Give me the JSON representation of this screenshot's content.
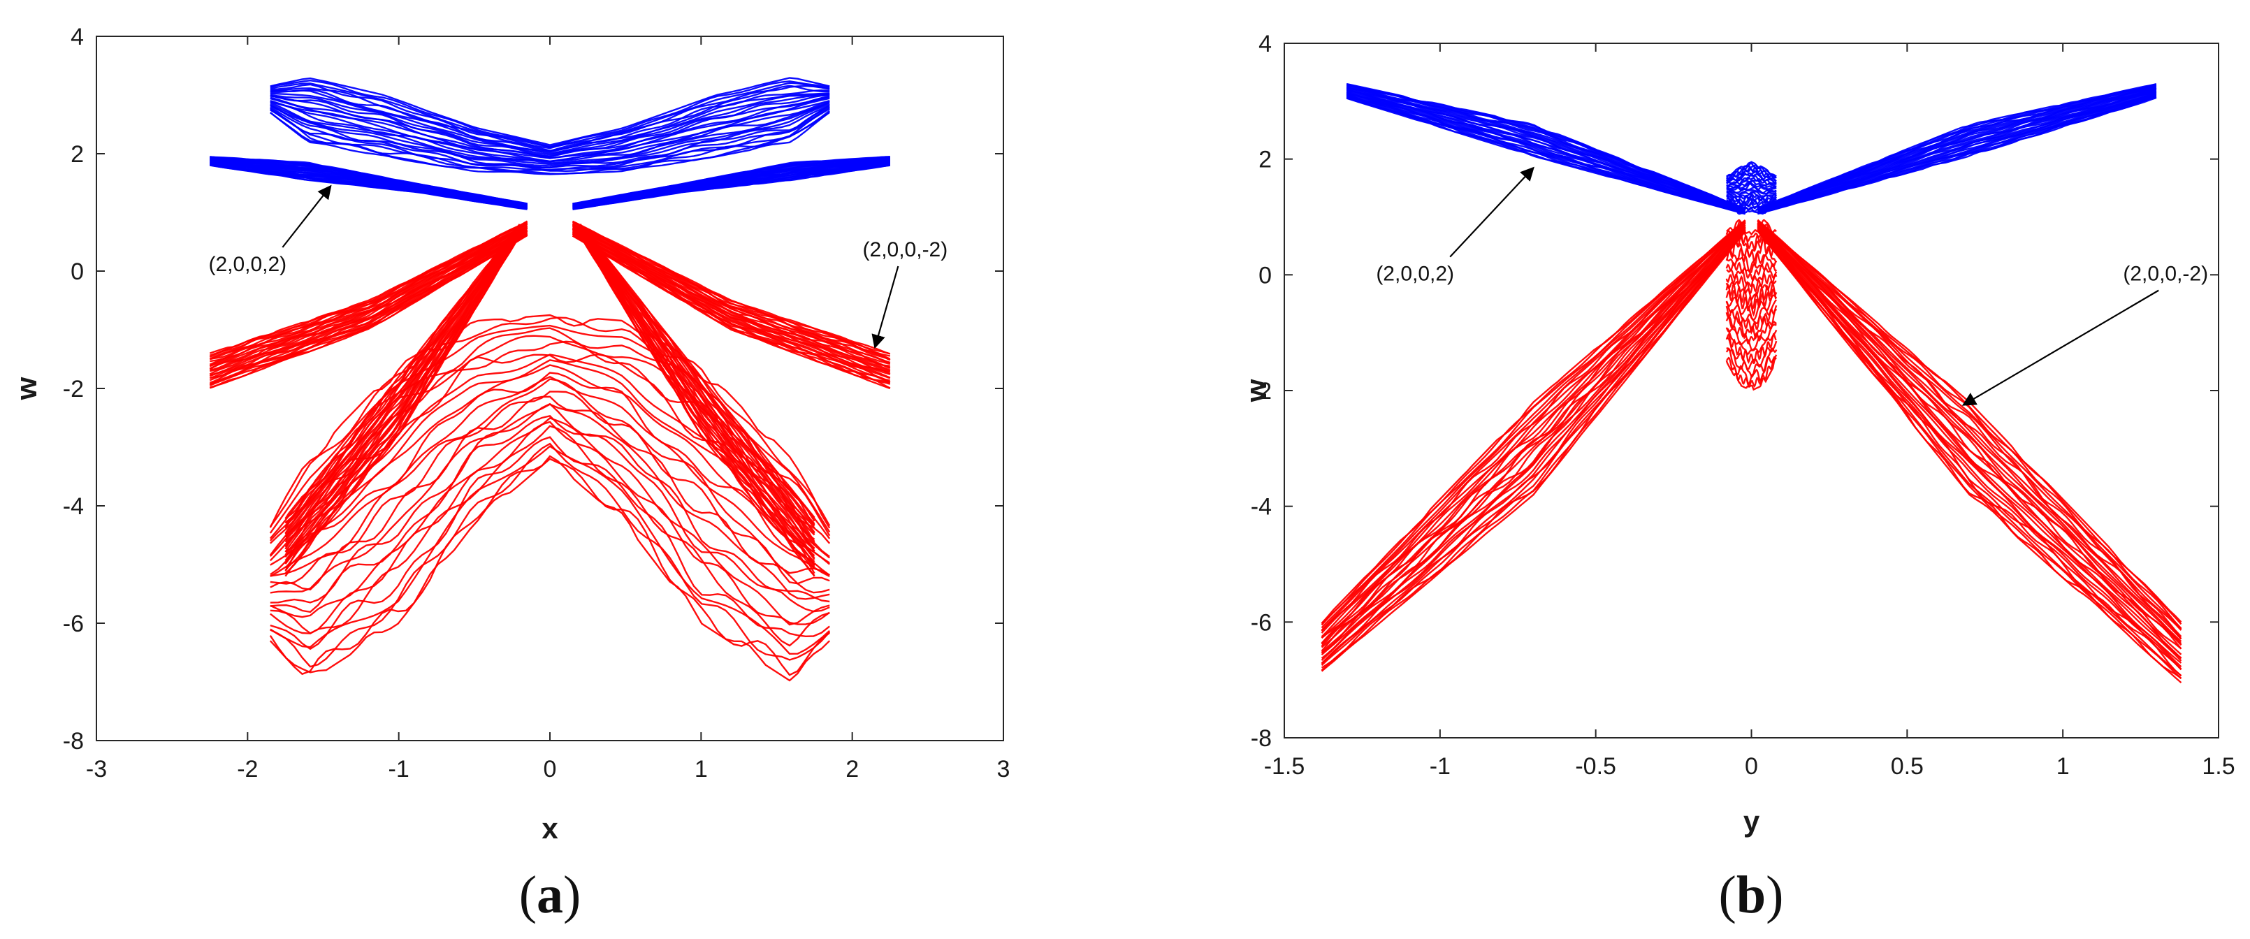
{
  "chart_data": [
    {
      "type": "line",
      "panel_label": "a",
      "xlabel": "x",
      "ylabel": "w",
      "xlim": [
        -3,
        3
      ],
      "ylim": [
        -8,
        4
      ],
      "xticks": [
        -3,
        -2,
        -1,
        0,
        1,
        2,
        3
      ],
      "yticks": [
        4,
        2,
        0,
        -2,
        -4,
        -6,
        -8
      ],
      "grid": false,
      "series": [
        {
          "color": "#0000ff",
          "tubes": [
            {
              "x": [
                -1.85,
                -1.6,
                -1.1,
                -0.5,
                0.0,
                0.5,
                1.1,
                1.6,
                1.85
              ],
              "lo": [
                2.7,
                2.2,
                1.95,
                1.7,
                1.65,
                1.7,
                1.95,
                2.2,
                2.7
              ],
              "hi": [
                3.15,
                3.3,
                3.0,
                2.45,
                2.15,
                2.45,
                3.0,
                3.3,
                3.15
              ]
            },
            {
              "x": [
                -2.25,
                -1.6,
                -0.9,
                -0.15
              ],
              "lo": [
                1.8,
                1.55,
                1.35,
                1.05
              ],
              "hi": [
                1.95,
                1.85,
                1.5,
                1.15
              ]
            },
            {
              "x": [
                0.15,
                0.9,
                1.6,
                2.25
              ],
              "lo": [
                1.05,
                1.35,
                1.55,
                1.8
              ],
              "hi": [
                1.15,
                1.5,
                1.85,
                1.95
              ]
            }
          ]
        },
        {
          "color": "#ff0000",
          "tubes": [
            {
              "x": [
                -1.85,
                -1.6,
                -1.0,
                -0.5,
                0.0,
                0.5,
                1.0,
                1.6,
                1.85
              ],
              "lo": [
                -6.3,
                -7.0,
                -6.0,
                -4.3,
                -3.2,
                -4.3,
                -6.0,
                -7.0,
                -6.3
              ],
              "hi": [
                -4.3,
                -3.2,
                -1.6,
                -0.85,
                -0.75,
                -0.85,
                -1.6,
                -3.2,
                -4.3
              ]
            },
            {
              "x": [
                -2.25,
                -1.2,
                -0.15
              ],
              "lo": [
                -2.0,
                -1.0,
                0.6
              ],
              "hi": [
                -1.4,
                -0.5,
                0.85
              ]
            },
            {
              "x": [
                0.15,
                1.2,
                2.25
              ],
              "lo": [
                0.6,
                -1.0,
                -2.0
              ],
              "hi": [
                0.85,
                -0.5,
                -1.4
              ]
            },
            {
              "x": [
                -1.75,
                -1.0,
                -0.2
              ],
              "lo": [
                -5.2,
                -2.8,
                0.6
              ],
              "hi": [
                -4.2,
                -1.8,
                0.8
              ]
            },
            {
              "x": [
                0.2,
                1.0,
                1.75
              ],
              "lo": [
                0.6,
                -2.8,
                -5.2
              ],
              "hi": [
                0.8,
                -1.8,
                -4.2
              ]
            }
          ]
        }
      ],
      "annotations": [
        {
          "text": "(2,0,0,2)",
          "x": -2.0,
          "y": 0.0,
          "arrow_to": [
            -1.45,
            1.45
          ]
        },
        {
          "text": "(2,0,0,-2)",
          "x": 2.35,
          "y": 0.25,
          "arrow_to": [
            2.15,
            -1.3
          ]
        }
      ]
    },
    {
      "type": "line",
      "panel_label": "b",
      "xlabel": "y",
      "ylabel": "w",
      "xlim": [
        -1.5,
        1.5
      ],
      "ylim": [
        -8,
        4
      ],
      "xticks": [
        -1.5,
        -1,
        -0.5,
        0,
        0.5,
        1,
        1.5
      ],
      "yticks": [
        4,
        2,
        0,
        -2,
        -4,
        -6,
        -8
      ],
      "grid": false,
      "series": [
        {
          "color": "#0000ff",
          "tubes": [
            {
              "x": [
                -1.3,
                -0.7,
                -0.02
              ],
              "lo": [
                3.05,
                2.05,
                1.05
              ],
              "hi": [
                3.3,
                2.6,
                1.15
              ]
            },
            {
              "x": [
                0.02,
                0.7,
                1.3
              ],
              "lo": [
                1.05,
                2.05,
                3.05
              ],
              "hi": [
                1.15,
                2.6,
                3.3
              ]
            },
            {
              "x": [
                -0.08,
                -0.04,
                0.0,
                0.04,
                0.08
              ],
              "lo": [
                1.25,
                1.05,
                1.1,
                1.05,
                1.25
              ],
              "hi": [
                1.7,
                1.85,
                1.95,
                1.85,
                1.7
              ]
            }
          ]
        },
        {
          "color": "#ff0000",
          "tubes": [
            {
              "x": [
                -1.38,
                -0.7,
                -0.02
              ],
              "lo": [
                -6.85,
                -3.8,
                0.75
              ],
              "hi": [
                -6.0,
                -2.2,
                0.95
              ]
            },
            {
              "x": [
                0.02,
                0.7,
                1.38
              ],
              "lo": [
                0.75,
                -3.8,
                -7.05
              ],
              "hi": [
                0.95,
                -2.2,
                -6.0
              ]
            },
            {
              "x": [
                -0.08,
                -0.04,
                0.0,
                0.04,
                0.08
              ],
              "lo": [
                -1.5,
                -1.9,
                -2.0,
                -1.9,
                -1.5
              ],
              "hi": [
                0.75,
                0.95,
                0.7,
                0.95,
                0.75
              ]
            }
          ]
        }
      ],
      "annotations": [
        {
          "text": "(2,0,0,2)",
          "x": -1.08,
          "y": -0.1,
          "arrow_to": [
            -0.7,
            1.85
          ]
        },
        {
          "text": "(2,0,0,-2)",
          "x": 1.33,
          "y": -0.1,
          "arrow_to": [
            0.68,
            -2.25
          ]
        }
      ]
    }
  ]
}
